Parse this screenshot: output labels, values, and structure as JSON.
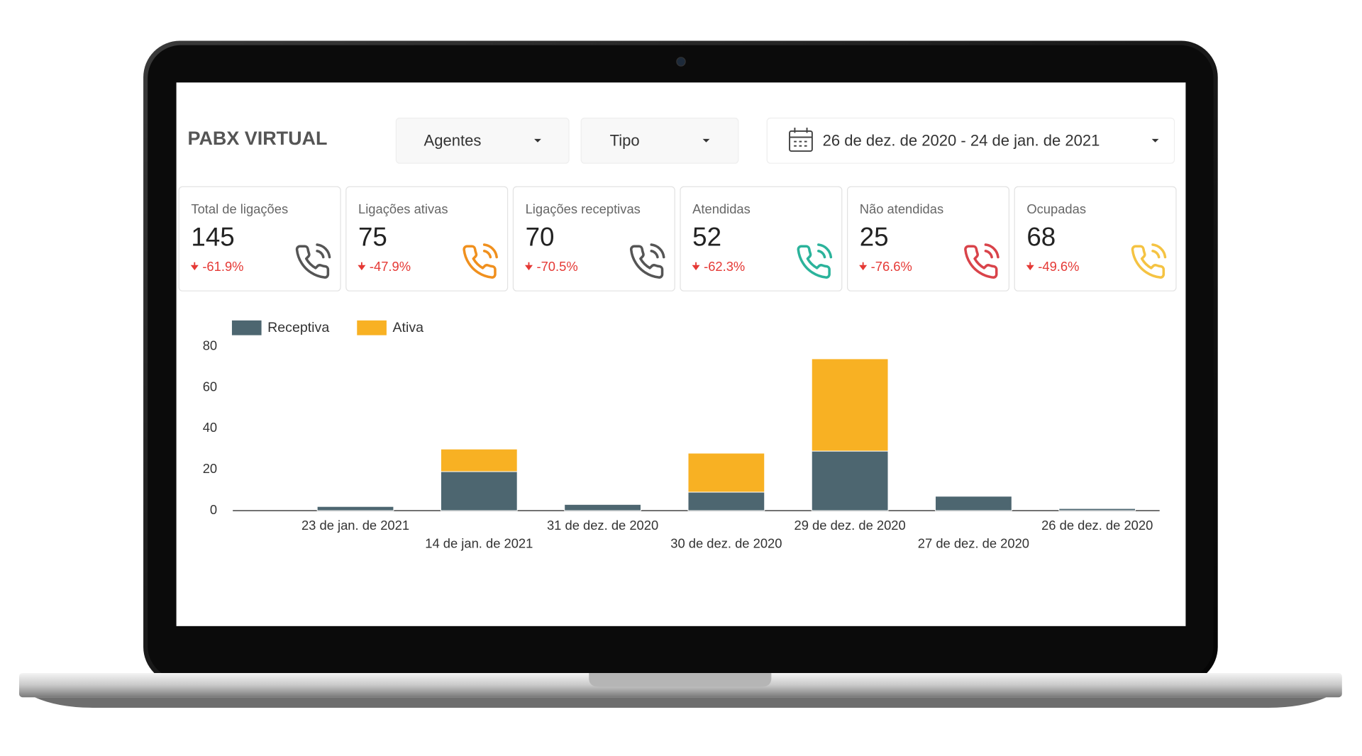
{
  "header": {
    "title": "PABX VIRTUAL"
  },
  "filters": {
    "agent": "Agentes",
    "type": "Tipo",
    "date_range": "26 de dez. de 2020 - 24 de jan. de 2021"
  },
  "kpis": [
    {
      "label": "Total de ligações",
      "value": "145",
      "delta": "-61.9%",
      "color": "#555555"
    },
    {
      "label": "Ligações ativas",
      "value": "75",
      "delta": "-47.9%",
      "color": "#f0901e"
    },
    {
      "label": "Ligações receptivas",
      "value": "70",
      "delta": "-70.5%",
      "color": "#555555"
    },
    {
      "label": "Atendidas",
      "value": "52",
      "delta": "-62.3%",
      "color": "#2bb39b"
    },
    {
      "label": "Não atendidas",
      "value": "25",
      "delta": "-76.6%",
      "color": "#d9434a"
    },
    {
      "label": "Ocupadas",
      "value": "68",
      "delta": "-49.6%",
      "color": "#f5c342"
    }
  ],
  "chart_data": {
    "type": "bar",
    "stacked": true,
    "categories": [
      "23 de jan. de 2021",
      "14 de jan. de 2021",
      "31 de dez. de 2020",
      "30 de dez. de 2020",
      "29 de dez. de 2020",
      "27 de dez. de 2020",
      "26 de dez. de 2020"
    ],
    "series": [
      {
        "name": "Receptiva",
        "color": "#4d6670",
        "values": [
          2,
          19,
          3,
          9,
          29,
          7,
          1
        ]
      },
      {
        "name": "Ativa",
        "color": "#f8b123",
        "values": [
          0,
          11,
          0,
          19,
          45,
          0,
          0
        ]
      }
    ],
    "ylim": [
      0,
      80
    ],
    "yticks": [
      0,
      20,
      40,
      60,
      80
    ],
    "legend": "top-left"
  }
}
